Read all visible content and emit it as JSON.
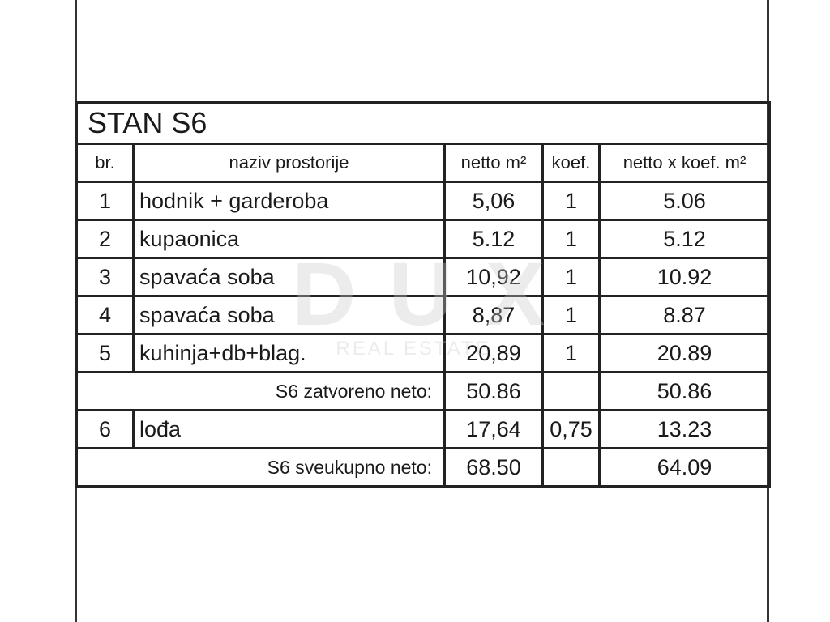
{
  "title": "STAN S6",
  "headers": [
    "br.",
    "naziv prostorije",
    "netto m²",
    "koef.",
    "netto x koef. m²"
  ],
  "rows": [
    {
      "no": "1",
      "name": "hodnik + garderoba",
      "netto": "5,06",
      "koef": "1",
      "total": "5.06"
    },
    {
      "no": "2",
      "name": "kupaonica",
      "netto": "5.12",
      "koef": "1",
      "total": "5.12"
    },
    {
      "no": "3",
      "name": "spavaća soba",
      "netto": "10,92",
      "koef": "1",
      "total": "10.92"
    },
    {
      "no": "4",
      "name": "spavaća soba",
      "netto": "8,87",
      "koef": "1",
      "total": "8.87"
    },
    {
      "no": "5",
      "name": "kuhinja+db+blag.",
      "netto": "20,89",
      "koef": "1",
      "total": "20.89"
    }
  ],
  "subtotal": {
    "label": "S6 zatvoreno neto:",
    "netto": "50.86",
    "total": "50.86"
  },
  "row6": {
    "no": "6",
    "name": "lođa",
    "netto": "17,64",
    "koef": "0,75",
    "total": "13.23"
  },
  "grand": {
    "label": "S6 sveukupno neto:",
    "netto": "68.50",
    "total": "64.09"
  },
  "watermark": {
    "brand": "DUX",
    "sub": "REAL ESTATE"
  }
}
